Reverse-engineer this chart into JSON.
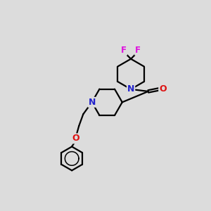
{
  "bg_color": "#dcdcdc",
  "N_color": "#2222cc",
  "O_color": "#dd1111",
  "F_color": "#dd11dd",
  "C_color": "#000000",
  "bond_color": "#000000",
  "bond_width": 1.6,
  "fig_size": [
    3.0,
    3.0
  ],
  "dpi": 100,
  "xlim": [
    0,
    300
  ],
  "ylim": [
    0,
    300
  ]
}
